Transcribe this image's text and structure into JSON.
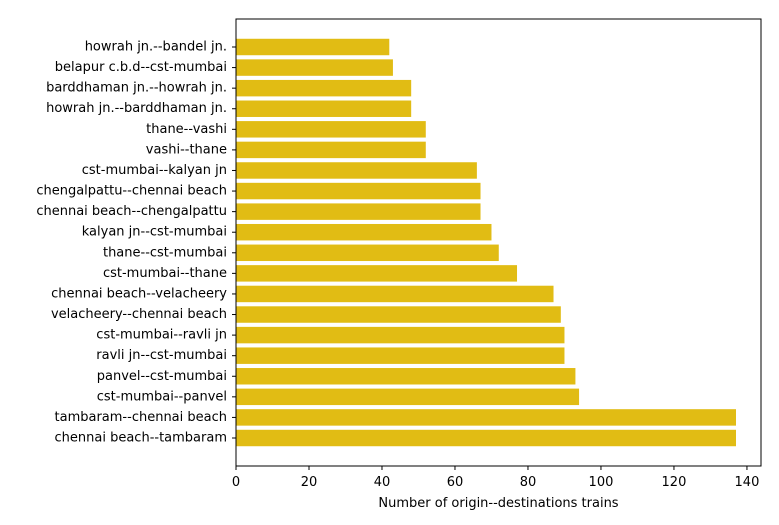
{
  "chart_data": {
    "type": "bar",
    "orientation": "horizontal",
    "categories": [
      "chennai beach--tambaram",
      "tambaram--chennai beach",
      "cst-mumbai--panvel",
      "panvel--cst-mumbai",
      "ravli jn--cst-mumbai",
      "cst-mumbai--ravli jn",
      "velacheery--chennai beach",
      "chennai beach--velacheery",
      "cst-mumbai--thane",
      "thane--cst-mumbai",
      "kalyan jn--cst-mumbai",
      "chennai beach--chengalpattu",
      "chengalpattu--chennai beach",
      "cst-mumbai--kalyan jn",
      "vashi--thane",
      "thane--vashi",
      "howrah jn.--barddhaman jn.",
      "barddhaman jn.--howrah jn.",
      "belapur c.b.d--cst-mumbai",
      "howrah jn.--bandel jn."
    ],
    "values": [
      137,
      137,
      94,
      93,
      90,
      90,
      89,
      87,
      77,
      72,
      70,
      67,
      67,
      66,
      52,
      52,
      48,
      48,
      43,
      42
    ],
    "xlabel": "Number of origin--destinations trains",
    "ylabel": "",
    "title": "",
    "xlim": [
      0,
      143.85
    ],
    "xticks": [
      "0",
      "20",
      "40",
      "60",
      "80",
      "100",
      "120",
      "140"
    ],
    "bar_color": "#e1bc14",
    "grid": false
  }
}
